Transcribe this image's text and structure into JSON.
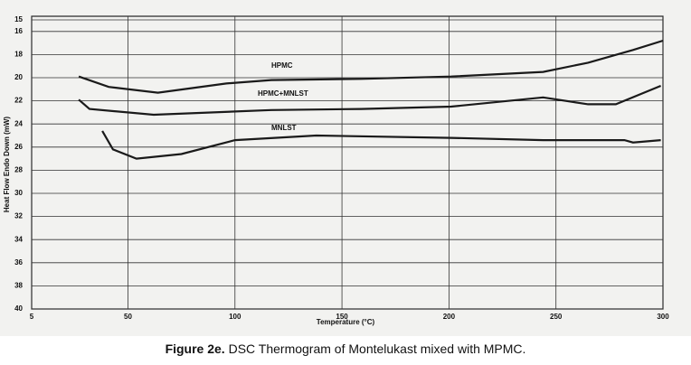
{
  "chart_data": {
    "type": "line",
    "xlabel": "Temperature (°C)",
    "ylabel": "Heat Flow Endo Down (mW)",
    "caption_label": "Figure 2e.",
    "caption_text": "DSC Thermogram of Montelukast mixed with MPMC.",
    "xlim": [
      5,
      300
    ],
    "xticks": [
      5,
      50,
      100,
      150,
      200,
      250,
      300
    ],
    "ylim": [
      15,
      40
    ],
    "yticks": [
      15,
      16,
      18,
      20,
      22,
      24,
      26,
      28,
      30,
      32,
      34,
      36,
      38,
      40
    ],
    "y_inverted": true,
    "grid": true,
    "series": [
      {
        "name": "HPMC",
        "color": "#1a1a1a",
        "x": [
          27,
          41,
          64,
          96,
          117,
          159,
          201,
          244,
          265,
          286,
          300
        ],
        "values": [
          19.9,
          20.8,
          21.3,
          20.5,
          20.2,
          20.1,
          19.9,
          19.5,
          18.7,
          17.6,
          16.8
        ]
      },
      {
        "name": "HPMC+MNLST",
        "color": "#1a1a1a",
        "x": [
          27,
          32,
          62,
          117,
          159,
          201,
          244,
          265,
          278,
          299
        ],
        "values": [
          21.9,
          22.7,
          23.2,
          22.8,
          22.7,
          22.5,
          21.7,
          22.3,
          22.3,
          20.7
        ]
      },
      {
        "name": "MNLST",
        "color": "#1a1a1a",
        "x": [
          38,
          43,
          54,
          75,
          100,
          138,
          201,
          244,
          282,
          286,
          299
        ],
        "values": [
          24.6,
          26.2,
          27.0,
          26.6,
          25.4,
          25.0,
          25.2,
          25.4,
          25.4,
          25.6,
          25.4
        ]
      }
    ]
  }
}
